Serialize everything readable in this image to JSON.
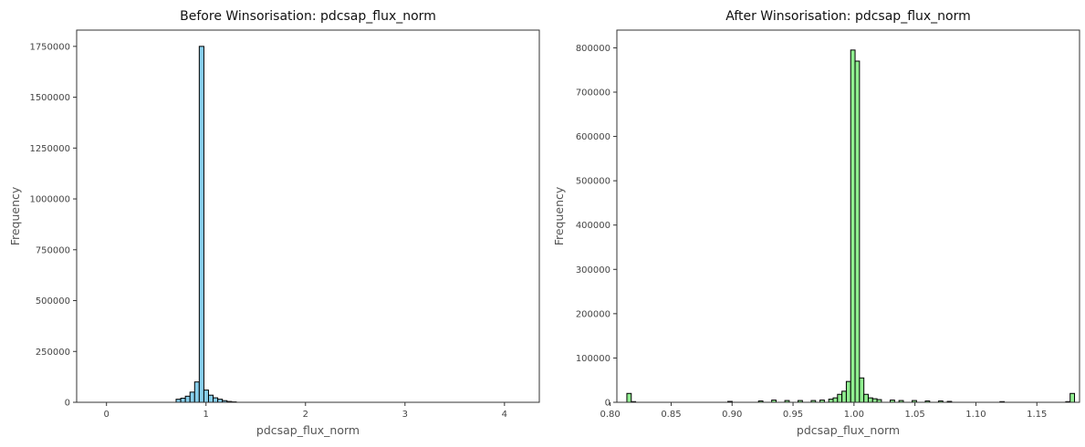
{
  "chart_data": [
    {
      "type": "bar",
      "title": "Before Winsorisation: pdcsap_flux_norm",
      "xlabel": "pdcsap_flux_norm",
      "ylabel": "Frequency",
      "bar_color": "#87ceeb",
      "edge_color": "#000000",
      "xlim": [
        -0.3,
        4.35
      ],
      "ylim": [
        0,
        1830000
      ],
      "xticks": [
        0,
        1,
        2,
        3,
        4
      ],
      "xtick_labels": [
        "0",
        "1",
        "2",
        "3",
        "4"
      ],
      "yticks": [
        0,
        250000,
        500000,
        750000,
        1000000,
        1250000,
        1500000,
        1750000
      ],
      "ytick_labels": [
        "0",
        "250000",
        "500000",
        "750000",
        "1000000",
        "1250000",
        "1500000",
        "1750000"
      ],
      "bin_width": 0.0465,
      "bins": [
        {
          "x": 0.7,
          "y": 8000
        },
        {
          "x": 0.745,
          "y": 15000
        },
        {
          "x": 0.791,
          "y": 20000
        },
        {
          "x": 0.838,
          "y": 30000
        },
        {
          "x": 0.884,
          "y": 50000
        },
        {
          "x": 0.931,
          "y": 100000
        },
        {
          "x": 0.977,
          "y": 1750000
        },
        {
          "x": 1.024,
          "y": 60000
        },
        {
          "x": 1.07,
          "y": 35000
        },
        {
          "x": 1.117,
          "y": 22000
        },
        {
          "x": 1.163,
          "y": 15000
        },
        {
          "x": 1.21,
          "y": 8000
        },
        {
          "x": 1.256,
          "y": 4000
        },
        {
          "x": 1.303,
          "y": 2000
        }
      ],
      "range": [
        -0.3,
        4.35
      ]
    },
    {
      "type": "bar",
      "title": "After Winsorisation: pdcsap_flux_norm",
      "xlabel": "pdcsap_flux_norm",
      "ylabel": "Frequency",
      "bar_color": "#90ee90",
      "edge_color": "#000000",
      "xlim": [
        0.8055,
        1.185
      ],
      "ylim": [
        0,
        840000
      ],
      "xticks": [
        0.8,
        0.85,
        0.9,
        0.95,
        1.0,
        1.05,
        1.1,
        1.15
      ],
      "xtick_labels": [
        "0.80",
        "0.85",
        "0.90",
        "0.95",
        "1.00",
        "1.05",
        "1.10",
        "1.15"
      ],
      "yticks": [
        0,
        100000,
        200000,
        300000,
        400000,
        500000,
        600000,
        700000,
        800000
      ],
      "ytick_labels": [
        "0",
        "100000",
        "200000",
        "300000",
        "400000",
        "500000",
        "600000",
        "700000",
        "800000"
      ],
      "bin_width": 0.0036,
      "bins": [
        {
          "x": 0.8155,
          "y": 20000
        },
        {
          "x": 0.819,
          "y": 1500
        },
        {
          "x": 0.9,
          "y": 2000
        },
        {
          "x": 0.925,
          "y": 3000
        },
        {
          "x": 0.935,
          "y": 5000
        },
        {
          "x": 0.945,
          "y": 4000
        },
        {
          "x": 0.955,
          "y": 4000
        },
        {
          "x": 0.965,
          "y": 4000
        },
        {
          "x": 0.975,
          "y": 5000
        },
        {
          "x": 0.98,
          "y": 7000
        },
        {
          "x": 0.985,
          "y": 10000
        },
        {
          "x": 0.989,
          "y": 18000
        },
        {
          "x": 0.992,
          "y": 25000
        },
        {
          "x": 0.996,
          "y": 47000
        },
        {
          "x": 0.9995,
          "y": 795000
        },
        {
          "x": 1.003,
          "y": 770000
        },
        {
          "x": 1.0066,
          "y": 55000
        },
        {
          "x": 1.0102,
          "y": 18000
        },
        {
          "x": 1.0138,
          "y": 10000
        },
        {
          "x": 1.0174,
          "y": 8000
        },
        {
          "x": 1.021,
          "y": 6000
        },
        {
          "x": 1.03,
          "y": 5000
        },
        {
          "x": 1.04,
          "y": 4000
        },
        {
          "x": 1.05,
          "y": 4000
        },
        {
          "x": 1.06,
          "y": 3000
        },
        {
          "x": 1.07,
          "y": 3000
        },
        {
          "x": 1.08,
          "y": 2000
        },
        {
          "x": 1.12,
          "y": 1500
        },
        {
          "x": 1.174,
          "y": 1500
        },
        {
          "x": 1.1775,
          "y": 20000
        }
      ],
      "range": [
        0.8155,
        1.1775
      ]
    }
  ]
}
